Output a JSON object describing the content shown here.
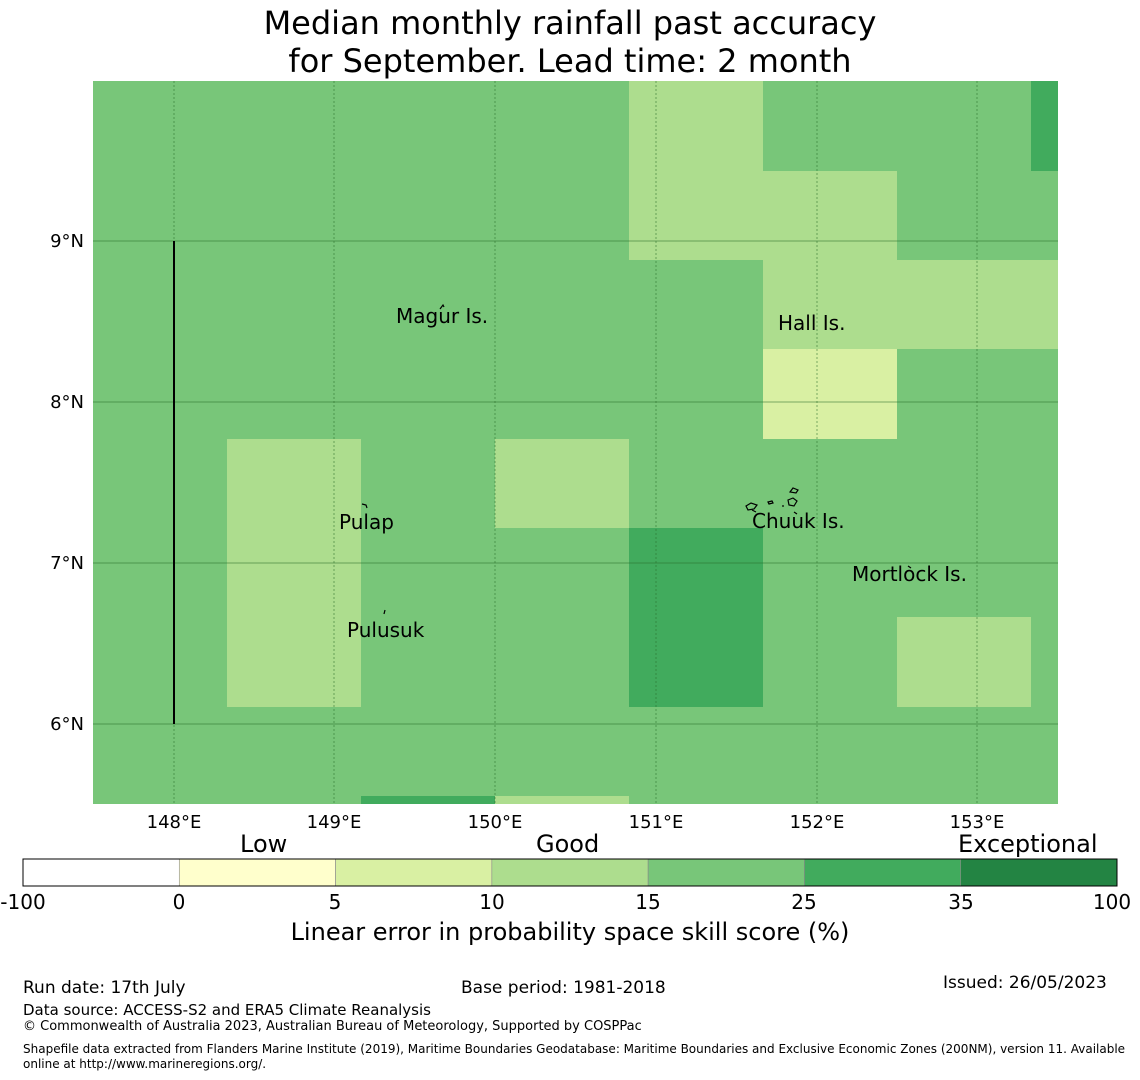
{
  "title": {
    "line1": "Median monthly rainfall past accuracy",
    "line2": "for September. Lead time: 2 month"
  },
  "map": {
    "lon_ticks": [
      "148°E",
      "149°E",
      "150°E",
      "151°E",
      "152°E",
      "153°E"
    ],
    "lat_ticks": [
      "9°N",
      "8°N",
      "7°N",
      "6°N"
    ],
    "places": [
      "Magur Is.",
      "Hall Is.",
      "Pulap",
      "Chuuk Is.",
      "Mortlock Is.",
      "Pulusuk"
    ],
    "palette": {
      "lt0": "#ffffff",
      "b0_5": "#ffffcc",
      "b5_10": "#d9f0a3",
      "b10_15": "#addd8e",
      "b15_25": "#78c679",
      "b25_35": "#41ab5d",
      "b35_100": "#238443"
    }
  },
  "colorbar": {
    "categories": [
      "Low",
      "Good",
      "Exceptional"
    ],
    "ticks": [
      "-100",
      "0",
      "5",
      "10",
      "15",
      "25",
      "35",
      "100"
    ],
    "colors": [
      "#ffffff",
      "#ffffcc",
      "#d9f0a3",
      "#addd8e",
      "#78c679",
      "#41ab5d",
      "#238443"
    ],
    "label": "Linear error in probability space skill score (%)"
  },
  "footer": {
    "run_date": "Run date: 17th July",
    "base_period": "Base period: 1981-2018",
    "issued": "Issued: 26/05/2023",
    "data_source": "Data source: ACCESS-S2 and ERA5 Climate Reanalysis",
    "copyright": "© Commonwealth of Australia 2023, Australian Bureau of Meteorology, Supported by COSPPac",
    "shapefile_1": "Shapefile data extracted from Flanders Marine Institute (2019), Maritime Boundaries Geodatabase: Maritime Boundaries and Exclusive Economic Zones (200NM), version 11. Available",
    "shapefile_2": "online at http://www.marineregions.org/."
  }
}
